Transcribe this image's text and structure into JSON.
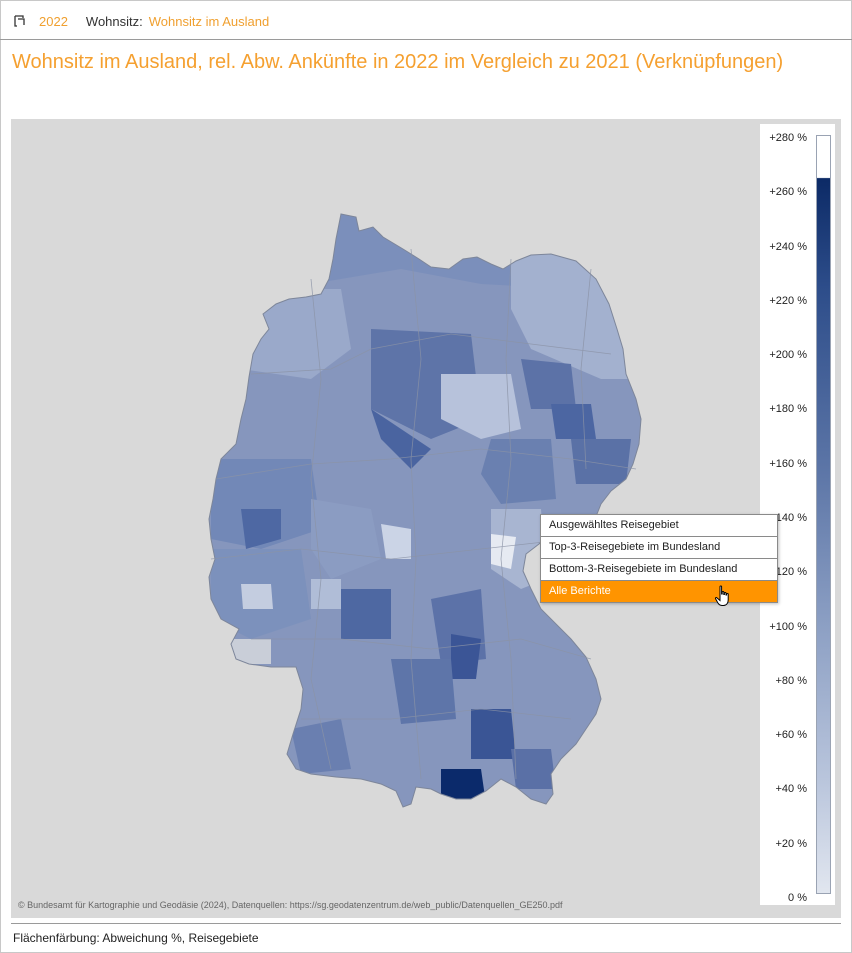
{
  "breadcrumb": {
    "year": "2022",
    "key": "Wohnsitz:",
    "value": "Wohnsitz im Ausland"
  },
  "title": "Wohnsitz im Ausland, rel. Abw. Ankünfte in 2022 im Vergleich zu 2021 (Verknüpfungen)",
  "map": {
    "copyright": "© Bundesamt für Kartographie und Geodäsie (2024), Datenquellen: https://sg.geodatenzentrum.de/web_public/Datenquellen_GE250.pdf"
  },
  "legend": {
    "ticks": [
      "+280 %",
      "+260 %",
      "+240 %",
      "+220 %",
      "+200 %",
      "+180 %",
      "+160 %",
      "+140 %",
      "+120 %",
      "+100 %",
      "+80 %",
      "+60 %",
      "+40 %",
      "+20 %",
      "0 %"
    ],
    "max_color": "#0c2a66",
    "min_color": "#e1e6ef"
  },
  "context_menu": {
    "items": [
      {
        "label": "Ausgewähltes Reisegebiet"
      },
      {
        "label": "Top-3-Reisegebiete im Bundesland"
      },
      {
        "label": "Bottom-3-Reisegebiete im Bundesland"
      },
      {
        "label": "Alle Berichte"
      }
    ]
  },
  "footer": "Flächenfärbung: Abweichung %, Reisegebiete",
  "colors": {
    "accent": "#f5a030",
    "menu_highlight": "#ff9400"
  }
}
